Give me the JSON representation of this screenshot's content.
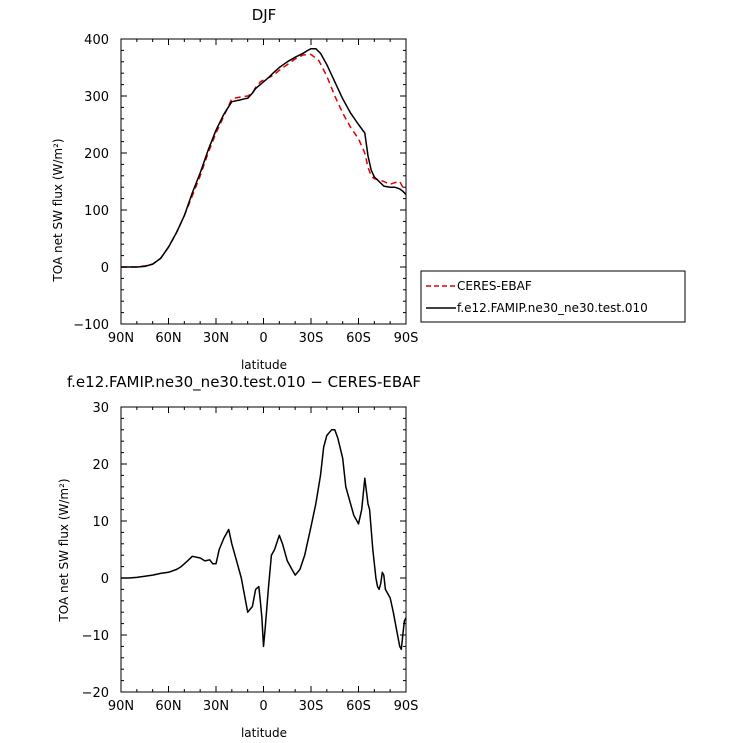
{
  "chart_data": [
    {
      "type": "line",
      "title": "DJF",
      "xlabel": "latitude",
      "ylabel": "TOA net SW flux (W/m²)",
      "xlim": [
        90,
        -90
      ],
      "ylim": [
        -100,
        400
      ],
      "x_ticks": [
        "90N",
        "60N",
        "30N",
        "0",
        "30S",
        "60S",
        "90S"
      ],
      "x_tick_values": [
        90,
        60,
        30,
        0,
        -30,
        -60,
        -90
      ],
      "y_ticks": [
        "−100",
        "0",
        "100",
        "200",
        "300",
        "400"
      ],
      "y_tick_values": [
        -100,
        0,
        100,
        200,
        300,
        400
      ],
      "legend": {
        "placement": "right-bottom, outside plot"
      },
      "series": [
        {
          "name": "CERES-EBAF",
          "color": "#e00000",
          "dash": "dashed",
          "x": [
            90,
            85,
            80,
            75,
            70,
            65,
            60,
            55,
            50,
            45,
            40,
            35,
            30,
            25,
            20,
            15,
            10,
            7,
            5,
            2,
            0,
            -3,
            -6,
            -10,
            -15,
            -20,
            -25,
            -30,
            -35,
            -40,
            -45,
            -50,
            -55,
            -60,
            -64,
            -66,
            -68,
            -70,
            -73,
            -76,
            -80,
            -83,
            -86,
            -88,
            -90
          ],
          "y": [
            0,
            0,
            0,
            2,
            5,
            15,
            35,
            60,
            90,
            125,
            160,
            200,
            235,
            265,
            295,
            298,
            300,
            305,
            315,
            325,
            328,
            332,
            336,
            345,
            355,
            365,
            372,
            373,
            362,
            335,
            300,
            270,
            245,
            225,
            200,
            175,
            160,
            155,
            153,
            150,
            145,
            148,
            150,
            140,
            135
          ]
        },
        {
          "name": "f.e12.FAMIP.ne30_ne30.test.010",
          "color": "#000000",
          "dash": "solid",
          "x": [
            90,
            85,
            80,
            75,
            70,
            65,
            60,
            55,
            50,
            45,
            40,
            35,
            30,
            25,
            20,
            15,
            12,
            10,
            7,
            5,
            2,
            0,
            -3,
            -6,
            -10,
            -15,
            -20,
            -25,
            -28,
            -30,
            -33,
            -36,
            -40,
            -45,
            -50,
            -55,
            -60,
            -64,
            -66,
            -68,
            -70,
            -73,
            -76,
            -80,
            -83,
            -86,
            -88,
            -90
          ],
          "y": [
            0,
            0,
            0,
            1,
            5,
            15,
            35,
            60,
            90,
            130,
            165,
            205,
            240,
            268,
            290,
            293,
            295,
            296,
            305,
            313,
            320,
            325,
            332,
            340,
            350,
            360,
            368,
            375,
            380,
            383,
            383,
            375,
            355,
            325,
            295,
            270,
            250,
            235,
            195,
            170,
            158,
            150,
            142,
            140,
            140,
            137,
            133,
            127
          ]
        }
      ]
    },
    {
      "type": "line",
      "title": "f.e12.FAMIP.ne30_ne30.test.010 − CERES-EBAF",
      "xlabel": "latitude",
      "ylabel": "TOA net SW flux (W/m²)",
      "xlim": [
        90,
        -90
      ],
      "ylim": [
        -20,
        30
      ],
      "x_ticks": [
        "90N",
        "60N",
        "30N",
        "0",
        "30S",
        "60S",
        "90S"
      ],
      "x_tick_values": [
        90,
        60,
        30,
        0,
        -30,
        -60,
        -90
      ],
      "y_ticks": [
        "−20",
        "−10",
        "0",
        "10",
        "20",
        "30"
      ],
      "y_tick_values": [
        -20,
        -10,
        0,
        10,
        20,
        30
      ],
      "series": [
        {
          "color": "#000000",
          "dash": "solid",
          "x": [
            90,
            85,
            80,
            75,
            70,
            65,
            60,
            55,
            52,
            48,
            45,
            40,
            37,
            34,
            32,
            30,
            28,
            25,
            22,
            20,
            17,
            14,
            12,
            10,
            7,
            5,
            3,
            2,
            1,
            0,
            -1,
            -3,
            -5,
            -7,
            -10,
            -12,
            -15,
            -18,
            -20,
            -23,
            -26,
            -30,
            -33,
            -36,
            -38,
            -40,
            -43,
            -45,
            -47,
            -50,
            -52,
            -55,
            -57,
            -60,
            -62,
            -64,
            -66,
            -67,
            -69,
            -71,
            -72,
            -73,
            -74,
            -75,
            -76,
            -77,
            -79,
            -80,
            -82,
            -84,
            -86,
            -87,
            -88,
            -89,
            -90
          ],
          "y": [
            0,
            0,
            0.1,
            0.3,
            0.5,
            0.8,
            1,
            1.5,
            2,
            3,
            3.8,
            3.5,
            3,
            3.2,
            2.5,
            2.5,
            5,
            7,
            8.5,
            6,
            3,
            0,
            -3,
            -6,
            -5,
            -2,
            -1.5,
            -4,
            -7,
            -12,
            -9,
            -2,
            4,
            5,
            7.5,
            6,
            3,
            1.5,
            0.5,
            1.5,
            4,
            9,
            13,
            18,
            23,
            25,
            26,
            26,
            24.5,
            21,
            16,
            13,
            11,
            9.5,
            12,
            17.5,
            13,
            12,
            5,
            0,
            -1.5,
            -2,
            -1,
            1,
            0.5,
            -2,
            -3,
            -3.5,
            -6,
            -9,
            -12,
            -12.5,
            -10,
            -7.5,
            -7
          ]
        }
      ]
    }
  ]
}
